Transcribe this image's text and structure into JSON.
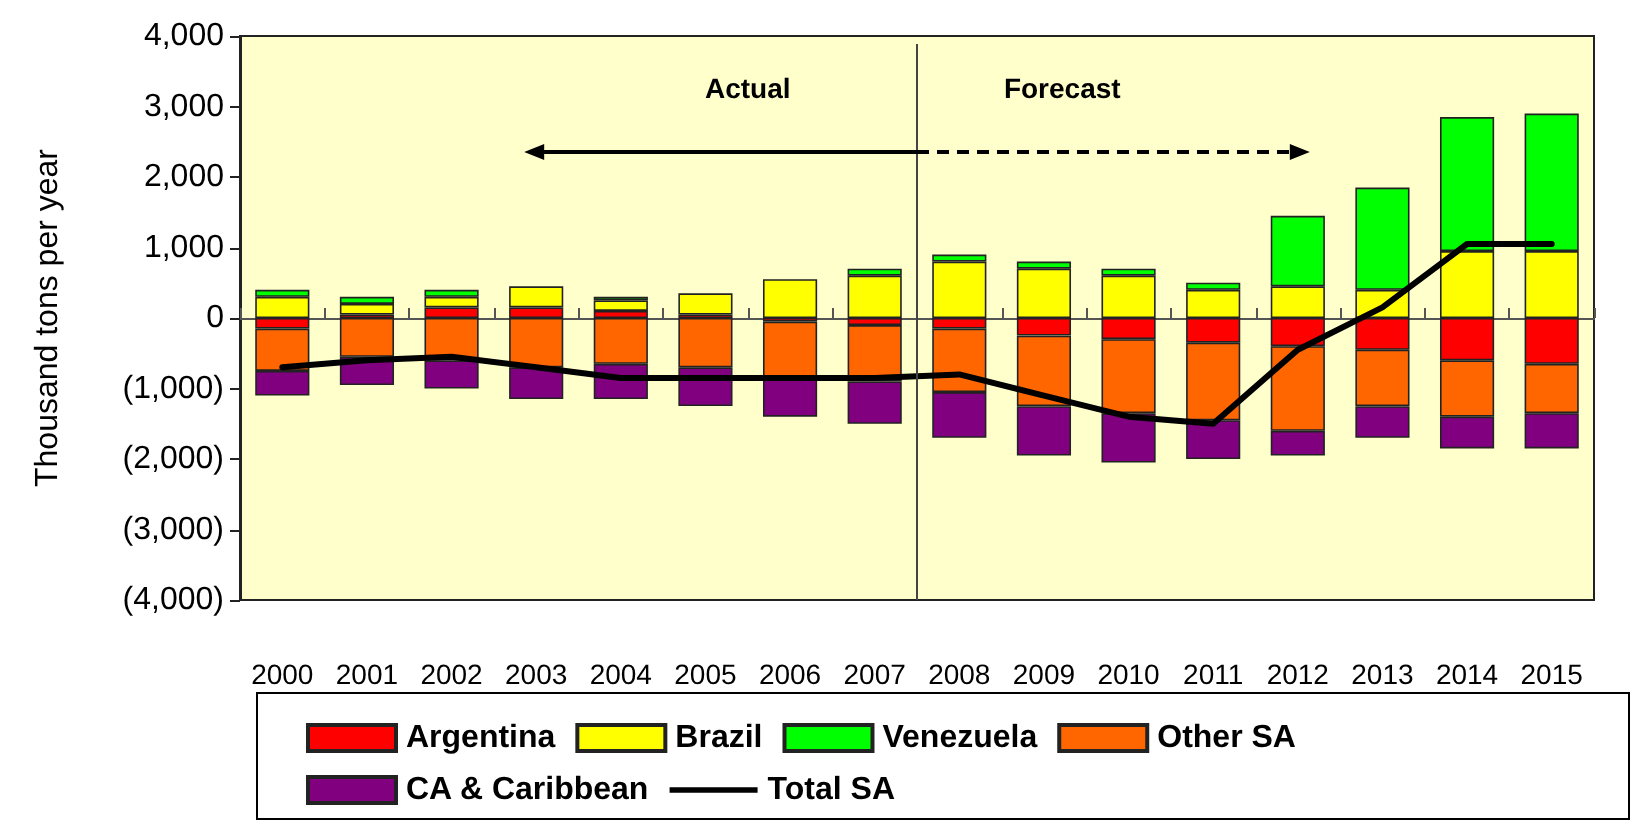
{
  "chart_data": {
    "type": "bar",
    "stacked": true,
    "ylabel": "Thousand tons per year",
    "categories": [
      "2000",
      "2001",
      "2002",
      "2003",
      "2004",
      "2005",
      "2006",
      "2007",
      "2008",
      "2009",
      "2010",
      "2011",
      "2012",
      "2013",
      "2014",
      "2015"
    ],
    "series": [
      {
        "name": "Argentina",
        "color": "#ff0000",
        "values": [
          -150,
          50,
          150,
          150,
          100,
          50,
          -50,
          -100,
          -150,
          -250,
          -300,
          -350,
          -400,
          -450,
          -600,
          -650
        ]
      },
      {
        "name": "Brazil",
        "color": "#ffff00",
        "values": [
          300,
          150,
          150,
          300,
          150,
          300,
          550,
          600,
          800,
          700,
          600,
          400,
          450,
          400,
          950,
          950
        ]
      },
      {
        "name": "Venezuela",
        "color": "#00ff00",
        "values": [
          100,
          100,
          100,
          null,
          50,
          null,
          null,
          100,
          100,
          100,
          100,
          100,
          1000,
          1450,
          1900,
          1950
        ]
      },
      {
        "name": "Other SA",
        "color": "#ff6600",
        "values": [
          -600,
          -550,
          -600,
          -700,
          -650,
          -700,
          -800,
          -800,
          -900,
          -1000,
          -1050,
          -1100,
          -1200,
          -800,
          -800,
          -700
        ]
      },
      {
        "name": "CA & Caribbean",
        "color": "#800080",
        "values": [
          -350,
          -400,
          -400,
          -450,
          -500,
          -550,
          -550,
          -600,
          -650,
          -700,
          -700,
          -550,
          -350,
          -450,
          -450,
          -500
        ]
      },
      {
        "name": "Total SA",
        "type": "line",
        "color": "#000000",
        "values": [
          -700,
          -600,
          -550,
          -700,
          -850,
          -850,
          -850,
          -850,
          -800,
          -1100,
          -1400,
          -1500,
          -450,
          150,
          1050,
          1050
        ]
      }
    ],
    "ylim": [
      -4000,
      4000
    ],
    "yticks": [
      {
        "value": -4000,
        "label": "(4,000)"
      },
      {
        "value": -3000,
        "label": "(3,000)"
      },
      {
        "value": -2000,
        "label": "(2,000)"
      },
      {
        "value": -1000,
        "label": "(1,000)"
      },
      {
        "value": 0,
        "label": "0"
      },
      {
        "value": 1000,
        "label": "1,000"
      },
      {
        "value": 2000,
        "label": "2,000"
      },
      {
        "value": 3000,
        "label": "3,000"
      },
      {
        "value": 4000,
        "label": "4,000"
      }
    ],
    "annotations": [
      "Actual",
      "Forecast"
    ],
    "ref_lines": [
      {
        "axis": "x",
        "value": "2008",
        "color": "#444444"
      }
    ],
    "grid": false,
    "legend": "bottom",
    "marker": "none",
    "line_style": "solid"
  }
}
